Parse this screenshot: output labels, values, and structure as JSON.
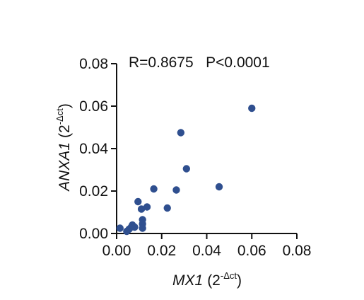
{
  "chart_data": {
    "type": "scatter",
    "annotation": "R=0.8675   P<0.0001",
    "xlabel": {
      "gene": "MX1",
      "unit_open": "(2",
      "unit_sup": "-Δct",
      "unit_close": ")"
    },
    "ylabel": {
      "gene": "ANXA1",
      "unit_open": "(2",
      "unit_sup": "-Δct",
      "unit_close": ")"
    },
    "xlim": [
      0,
      0.08
    ],
    "ylim": [
      0,
      0.08
    ],
    "xticks": [
      "0.00",
      "0.02",
      "0.04",
      "0.06",
      "0.08"
    ],
    "yticks": [
      "0.00",
      "0.02",
      "0.04",
      "0.06",
      "0.08"
    ],
    "grid": false,
    "point_color": "#2f4f8f",
    "points": [
      {
        "x": 0.0015,
        "y": 0.0025
      },
      {
        "x": 0.0045,
        "y": 0.001
      },
      {
        "x": 0.0055,
        "y": 0.002
      },
      {
        "x": 0.0065,
        "y": 0.003
      },
      {
        "x": 0.007,
        "y": 0.004
      },
      {
        "x": 0.008,
        "y": 0.003
      },
      {
        "x": 0.0095,
        "y": 0.015
      },
      {
        "x": 0.011,
        "y": 0.0115
      },
      {
        "x": 0.0115,
        "y": 0.0065
      },
      {
        "x": 0.0115,
        "y": 0.0045
      },
      {
        "x": 0.0115,
        "y": 0.0025
      },
      {
        "x": 0.0135,
        "y": 0.0125
      },
      {
        "x": 0.0165,
        "y": 0.021
      },
      {
        "x": 0.0225,
        "y": 0.012
      },
      {
        "x": 0.0265,
        "y": 0.0205
      },
      {
        "x": 0.0285,
        "y": 0.0475
      },
      {
        "x": 0.031,
        "y": 0.0305
      },
      {
        "x": 0.0455,
        "y": 0.022
      },
      {
        "x": 0.06,
        "y": 0.059
      }
    ]
  }
}
